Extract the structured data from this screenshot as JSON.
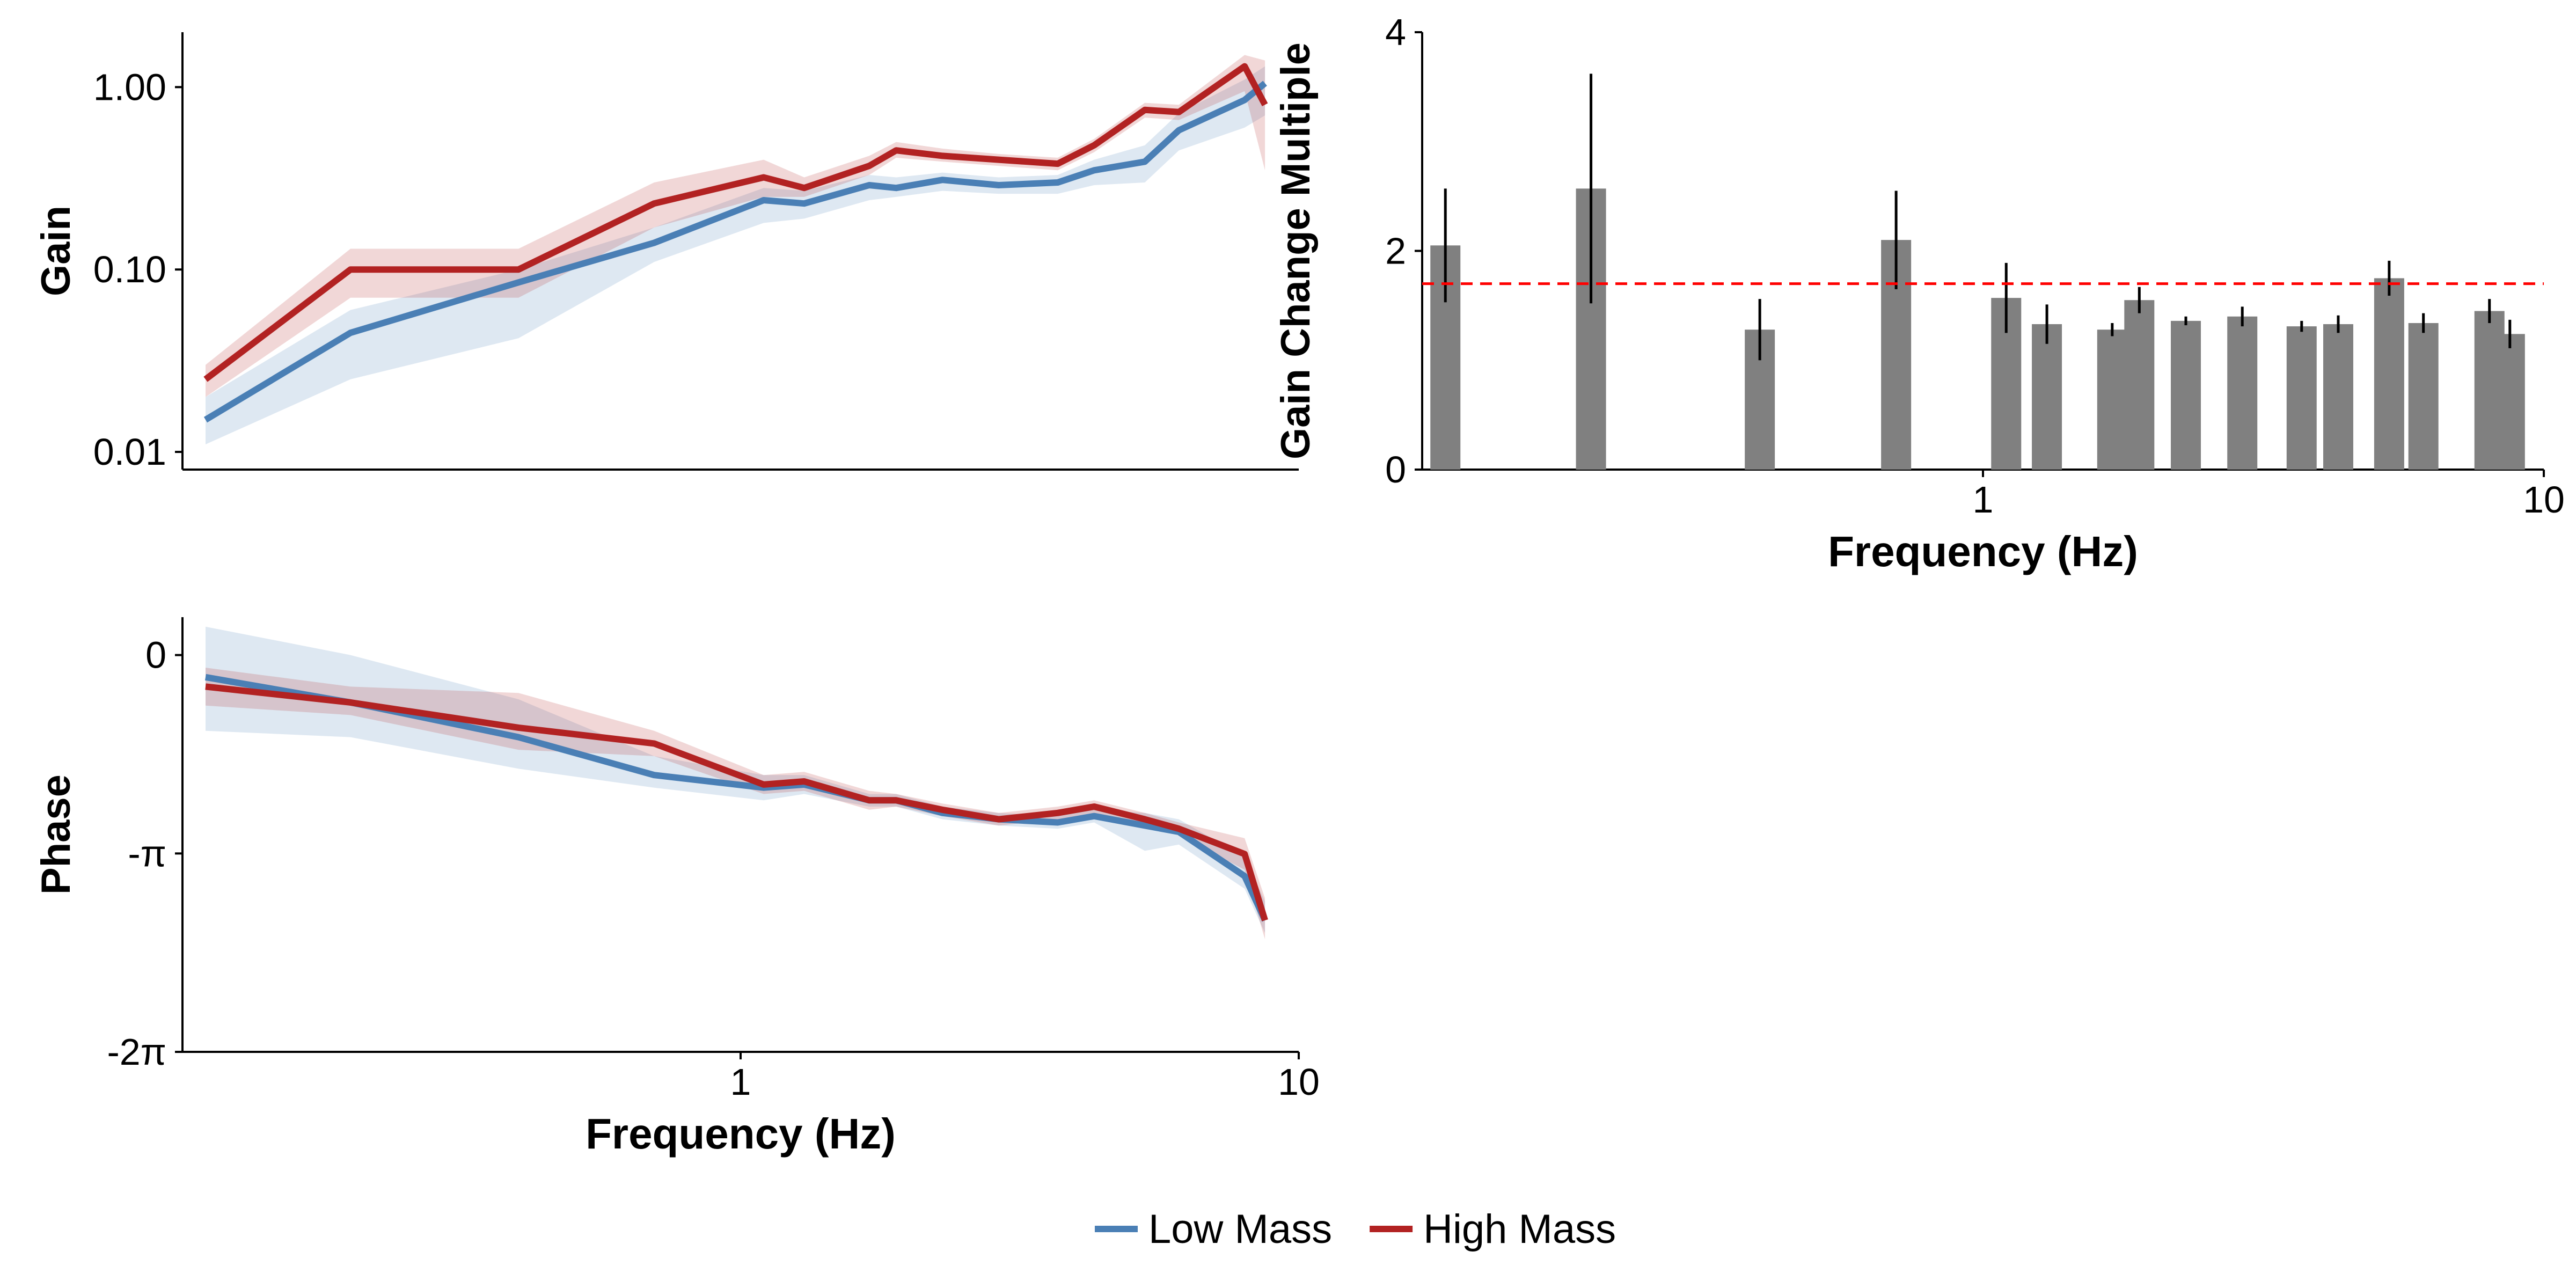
{
  "colors": {
    "low": "#4a7fb5",
    "high": "#b22222",
    "bar": "#808080",
    "errorbar": "#000000",
    "reference_line": "#ff0000"
  },
  "legend": {
    "placement": "bottom-center",
    "items": [
      {
        "label": "Low Mass",
        "color": "#4a7fb5"
      },
      {
        "label": "High Mass",
        "color": "#b22222"
      }
    ]
  },
  "chart_data": [
    {
      "id": "gain",
      "type": "line",
      "xscale": "log",
      "yscale": "log",
      "xlim": [
        0.1,
        10
      ],
      "ylim": [
        0.008,
        2.0
      ],
      "ylabel": "Gain",
      "xlabel": "",
      "yticks": [
        0.01,
        0.1,
        1.0
      ],
      "ytick_labels": [
        "0.01",
        "0.10",
        "1.00"
      ],
      "x": [
        0.11,
        0.2,
        0.4,
        0.7,
        1.1,
        1.3,
        1.7,
        1.9,
        2.3,
        2.9,
        3.7,
        4.3,
        5.3,
        6.1,
        8.0,
        8.7
      ],
      "series": [
        {
          "name": "Low Mass",
          "color": "#4a7fb5",
          "values": [
            0.015,
            0.045,
            0.085,
            0.14,
            0.24,
            0.23,
            0.29,
            0.28,
            0.31,
            0.29,
            0.3,
            0.35,
            0.39,
            0.58,
            0.85,
            1.05
          ],
          "lower": [
            0.011,
            0.025,
            0.042,
            0.11,
            0.18,
            0.19,
            0.24,
            0.25,
            0.27,
            0.26,
            0.26,
            0.29,
            0.3,
            0.45,
            0.6,
            0.7
          ],
          "upper": [
            0.02,
            0.06,
            0.1,
            0.17,
            0.28,
            0.27,
            0.33,
            0.32,
            0.34,
            0.32,
            0.33,
            0.4,
            0.48,
            0.72,
            1.1,
            1.3
          ]
        },
        {
          "name": "High Mass",
          "color": "#b22222",
          "values": [
            0.025,
            0.1,
            0.1,
            0.23,
            0.32,
            0.28,
            0.37,
            0.45,
            0.42,
            0.4,
            0.38,
            0.48,
            0.75,
            0.73,
            1.3,
            0.8
          ],
          "lower": [
            0.02,
            0.07,
            0.07,
            0.17,
            0.25,
            0.25,
            0.33,
            0.41,
            0.39,
            0.37,
            0.35,
            0.44,
            0.68,
            0.66,
            0.95,
            0.35
          ],
          "upper": [
            0.03,
            0.13,
            0.13,
            0.3,
            0.4,
            0.32,
            0.42,
            0.5,
            0.46,
            0.43,
            0.41,
            0.52,
            0.82,
            0.8,
            1.5,
            1.4
          ]
        }
      ]
    },
    {
      "id": "phase",
      "type": "line",
      "xscale": "log",
      "xlim": [
        0.1,
        10
      ],
      "ylim": [
        -6.283,
        0.6
      ],
      "ylabel": "Phase",
      "xlabel": "Frequency (Hz)",
      "xticks": [
        1,
        10
      ],
      "xtick_labels": [
        "1",
        "10"
      ],
      "yticks": [
        0,
        -3.1416,
        -6.2832
      ],
      "ytick_labels": [
        "0",
        "-π",
        "-2π"
      ],
      "x": [
        0.11,
        0.2,
        0.4,
        0.7,
        1.1,
        1.3,
        1.7,
        1.9,
        2.3,
        2.9,
        3.7,
        4.3,
        5.3,
        6.1,
        8.0,
        8.7
      ],
      "series": [
        {
          "name": "Low Mass",
          "color": "#4a7fb5",
          "values": [
            -0.35,
            -0.75,
            -1.3,
            -1.9,
            -2.1,
            -2.05,
            -2.3,
            -2.3,
            -2.5,
            -2.6,
            -2.65,
            -2.55,
            -2.7,
            -2.8,
            -3.5,
            -4.2
          ],
          "lower": [
            -1.2,
            -1.3,
            -1.8,
            -2.1,
            -2.3,
            -2.2,
            -2.4,
            -2.4,
            -2.6,
            -2.7,
            -2.75,
            -2.65,
            -3.1,
            -3.0,
            -3.7,
            -4.4
          ],
          "upper": [
            0.45,
            0.0,
            -0.7,
            -1.6,
            -1.9,
            -1.9,
            -2.2,
            -2.2,
            -2.4,
            -2.5,
            -2.55,
            -2.45,
            -2.5,
            -2.6,
            -3.2,
            -3.9
          ]
        },
        {
          "name": "High Mass",
          "color": "#b22222",
          "values": [
            -0.5,
            -0.75,
            -1.15,
            -1.4,
            -2.05,
            -2.0,
            -2.3,
            -2.3,
            -2.45,
            -2.6,
            -2.5,
            -2.4,
            -2.6,
            -2.75,
            -3.15,
            -4.2
          ],
          "lower": [
            -0.8,
            -0.95,
            -1.5,
            -1.6,
            -2.2,
            -2.15,
            -2.45,
            -2.4,
            -2.55,
            -2.7,
            -2.6,
            -2.5,
            -2.7,
            -2.85,
            -3.4,
            -4.5
          ],
          "upper": [
            -0.2,
            -0.5,
            -0.6,
            -1.2,
            -1.9,
            -1.85,
            -2.15,
            -2.2,
            -2.35,
            -2.5,
            -2.4,
            -2.3,
            -2.5,
            -2.65,
            -2.9,
            -3.85
          ]
        }
      ]
    },
    {
      "id": "gain-change",
      "type": "bar",
      "xscale": "log",
      "xlim": [
        0.1,
        10
      ],
      "ylim": [
        0,
        4
      ],
      "ylabel": "Gain Change Multiple",
      "xlabel": "Frequency (Hz)",
      "xticks": [
        1,
        10
      ],
      "xtick_labels": [
        "1",
        "10"
      ],
      "yticks": [
        0,
        2,
        4
      ],
      "ytick_labels": [
        "0",
        "2",
        "4"
      ],
      "reference_line": 1.7,
      "x": [
        0.11,
        0.2,
        0.4,
        0.7,
        1.1,
        1.3,
        1.7,
        1.9,
        2.3,
        2.9,
        3.7,
        4.3,
        5.3,
        6.1,
        8.0,
        8.7
      ],
      "values": [
        2.05,
        2.57,
        1.28,
        2.1,
        1.57,
        1.33,
        1.28,
        1.55,
        1.36,
        1.4,
        1.31,
        1.33,
        1.75,
        1.34,
        1.45,
        1.24
      ],
      "errors": [
        0.52,
        1.05,
        0.28,
        0.45,
        0.32,
        0.18,
        0.06,
        0.12,
        0.04,
        0.09,
        0.05,
        0.08,
        0.16,
        0.09,
        0.11,
        0.13
      ]
    }
  ]
}
